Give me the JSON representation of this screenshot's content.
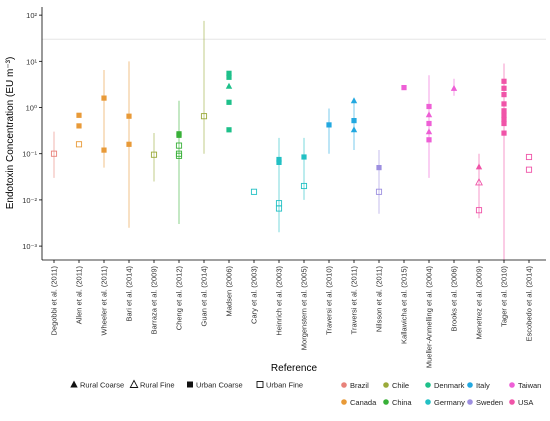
{
  "chart_data": {
    "type": "scatter",
    "ylabel": "Endotoxin Concentration (EU m⁻³)",
    "xlabel": "Reference",
    "y_scale": "log10",
    "ylim": [
      0.0005,
      150
    ],
    "y_ticks": [
      {
        "value": 0.001,
        "label": "10⁻³"
      },
      {
        "value": 0.01,
        "label": "10⁻²"
      },
      {
        "value": 0.1,
        "label": "10⁻¹"
      },
      {
        "value": 1,
        "label": "10⁰"
      },
      {
        "value": 10,
        "label": "10¹"
      },
      {
        "value": 100,
        "label": "10²"
      }
    ],
    "reference_line": 30,
    "grid": false,
    "categories": [
      "Degobbi et al. (2011)",
      "Allen et al. (2011)",
      "Wheeler et al. (2011)",
      "Bari et al. (2014)",
      "Barraza et al. (2009)",
      "Cheng et al. (2012)",
      "Guan et al. (2014)",
      "Madsen (2006)",
      "Cary et al. (2003)",
      "Heinrich et al. (2003)",
      "Morgenstern et al. (2005)",
      "Traversi et al. (2010)",
      "Traversi et al. (2011)",
      "Nilsson et al. (2011)",
      "Kallawicha et al. (2015)",
      "Mueller-Anmelling et al. (2004)",
      "Brooks et al. (2006)",
      "Menetrez et al. (2009)",
      "Tager et al. (2010)",
      "Escobedo et al. (2014)"
    ],
    "legend_types": [
      {
        "key": "rural_coarse",
        "label": "Rural Coarse",
        "shape": "triangle",
        "filled": true
      },
      {
        "key": "rural_fine",
        "label": "Rural Fine",
        "shape": "triangle",
        "filled": false
      },
      {
        "key": "urban_coarse",
        "label": "Urban Coarse",
        "shape": "square",
        "filled": true
      },
      {
        "key": "urban_fine",
        "label": "Urban Fine",
        "shape": "square",
        "filled": false
      }
    ],
    "legend_countries": [
      {
        "name": "Brazil",
        "color": "#e8827a"
      },
      {
        "name": "Canada",
        "color": "#e89a38"
      },
      {
        "name": "Chile",
        "color": "#9aaa3a"
      },
      {
        "name": "China",
        "color": "#38b038"
      },
      {
        "name": "Denmark",
        "color": "#1ec08a"
      },
      {
        "name": "Germany",
        "color": "#22c0c4"
      },
      {
        "name": "Italy",
        "color": "#22a8e0"
      },
      {
        "name": "Sweden",
        "color": "#9d8fe0"
      },
      {
        "name": "Taiwan",
        "color": "#ee5fd6"
      },
      {
        "name": "USA",
        "color": "#f054a8"
      }
    ],
    "series": [
      {
        "category": 0,
        "color": "#e8827a",
        "range": [
          0.03,
          0.3
        ],
        "points": [
          {
            "y": 0.1,
            "type": "urban_fine"
          }
        ]
      },
      {
        "category": 1,
        "color": "#e89a38",
        "range": null,
        "points": [
          {
            "y": 0.68,
            "type": "urban_coarse"
          },
          {
            "y": 0.4,
            "type": "urban_coarse"
          },
          {
            "y": 0.16,
            "type": "urban_fine"
          }
        ]
      },
      {
        "category": 2,
        "color": "#e89a38",
        "range": [
          0.05,
          6.5
        ],
        "points": [
          {
            "y": 1.6,
            "type": "urban_coarse"
          },
          {
            "y": 0.12,
            "type": "urban_coarse"
          }
        ]
      },
      {
        "category": 3,
        "color": "#e89a38",
        "range": [
          0.0025,
          10
        ],
        "points": [
          {
            "y": 0.65,
            "type": "urban_coarse"
          },
          {
            "y": 0.16,
            "type": "urban_coarse"
          }
        ]
      },
      {
        "category": 4,
        "color": "#9aaa3a",
        "range": [
          0.025,
          0.28
        ],
        "points": [
          {
            "y": 0.095,
            "type": "urban_fine"
          }
        ]
      },
      {
        "category": 5,
        "color": "#38b038",
        "range": [
          0.003,
          1.4
        ],
        "points": [
          {
            "y": 0.27,
            "type": "urban_coarse"
          },
          {
            "y": 0.25,
            "type": "urban_coarse"
          },
          {
            "y": 0.15,
            "type": "urban_fine"
          },
          {
            "y": 0.1,
            "type": "urban_fine"
          },
          {
            "y": 0.09,
            "type": "urban_fine"
          }
        ]
      },
      {
        "category": 6,
        "color": "#9aaa3a",
        "range": [
          0.1,
          75
        ],
        "points": [
          {
            "y": 0.65,
            "type": "urban_fine"
          }
        ]
      },
      {
        "category": 7,
        "color": "#1ec08a",
        "range": null,
        "points": [
          {
            "y": 5.5,
            "type": "urban_coarse"
          },
          {
            "y": 4.5,
            "type": "urban_coarse"
          },
          {
            "y": 2.9,
            "type": "rural_coarse"
          },
          {
            "y": 1.3,
            "type": "urban_coarse"
          },
          {
            "y": 0.33,
            "type": "urban_coarse"
          }
        ]
      },
      {
        "category": 8,
        "color": "#22c0c4",
        "range": null,
        "points": [
          {
            "y": 0.015,
            "type": "urban_fine"
          }
        ]
      },
      {
        "category": 9,
        "color": "#22c0c4",
        "range": [
          0.002,
          0.22
        ],
        "points": [
          {
            "y": 0.075,
            "type": "urban_coarse"
          },
          {
            "y": 0.065,
            "type": "urban_coarse"
          },
          {
            "y": 0.0085,
            "type": "urban_fine"
          },
          {
            "y": 0.0065,
            "type": "urban_fine"
          }
        ]
      },
      {
        "category": 10,
        "color": "#22c0c4",
        "range": [
          0.01,
          0.22
        ],
        "points": [
          {
            "y": 0.085,
            "type": "urban_coarse"
          },
          {
            "y": 0.02,
            "type": "urban_fine"
          }
        ]
      },
      {
        "category": 11,
        "color": "#22a8e0",
        "range": [
          0.1,
          0.95
        ],
        "points": [
          {
            "y": 0.42,
            "type": "urban_coarse"
          }
        ]
      },
      {
        "category": 12,
        "color": "#22a8e0",
        "range": [
          0.12,
          1.6
        ],
        "points": [
          {
            "y": 1.4,
            "type": "rural_coarse"
          },
          {
            "y": 0.52,
            "type": "urban_coarse"
          },
          {
            "y": 0.33,
            "type": "rural_coarse"
          }
        ]
      },
      {
        "category": 13,
        "color": "#9d8fe0",
        "range": [
          0.005,
          0.12
        ],
        "points": [
          {
            "y": 0.05,
            "type": "urban_coarse"
          },
          {
            "y": 0.015,
            "type": "urban_fine"
          }
        ]
      },
      {
        "category": 14,
        "color": "#ee5fd6",
        "range": null,
        "points": [
          {
            "y": 2.7,
            "type": "urban_coarse"
          }
        ]
      },
      {
        "category": 15,
        "color": "#ee5fd6",
        "range": [
          0.03,
          5
        ],
        "points": [
          {
            "y": 1.05,
            "type": "urban_coarse"
          },
          {
            "y": 0.7,
            "type": "rural_coarse"
          },
          {
            "y": 0.45,
            "type": "urban_coarse"
          },
          {
            "y": 0.3,
            "type": "rural_coarse"
          },
          {
            "y": 0.2,
            "type": "urban_coarse"
          }
        ]
      },
      {
        "category": 16,
        "color": "#ee5fd6",
        "range": [
          1.8,
          4.2
        ],
        "points": [
          {
            "y": 2.6,
            "type": "rural_coarse"
          }
        ]
      },
      {
        "category": 17,
        "color": "#f054a8",
        "range": [
          0.004,
          0.1
        ],
        "points": [
          {
            "y": 0.052,
            "type": "rural_coarse"
          },
          {
            "y": 0.024,
            "type": "rural_fine"
          },
          {
            "y": 0.006,
            "type": "urban_fine"
          }
        ]
      },
      {
        "category": 18,
        "color": "#f054a8",
        "range": [
          0.0005,
          9
        ],
        "points": [
          {
            "y": 3.7,
            "type": "urban_coarse"
          },
          {
            "y": 2.6,
            "type": "urban_coarse"
          },
          {
            "y": 1.9,
            "type": "urban_coarse"
          },
          {
            "y": 1.2,
            "type": "urban_coarse"
          },
          {
            "y": 0.85,
            "type": "urban_coarse"
          },
          {
            "y": 0.68,
            "type": "urban_coarse"
          },
          {
            "y": 0.55,
            "type": "urban_coarse"
          },
          {
            "y": 0.45,
            "type": "urban_coarse"
          },
          {
            "y": 0.28,
            "type": "urban_coarse"
          }
        ]
      },
      {
        "category": 19,
        "color": "#f054a8",
        "range": null,
        "points": [
          {
            "y": 0.085,
            "type": "urban_fine"
          },
          {
            "y": 0.045,
            "type": "urban_fine"
          }
        ]
      }
    ]
  }
}
